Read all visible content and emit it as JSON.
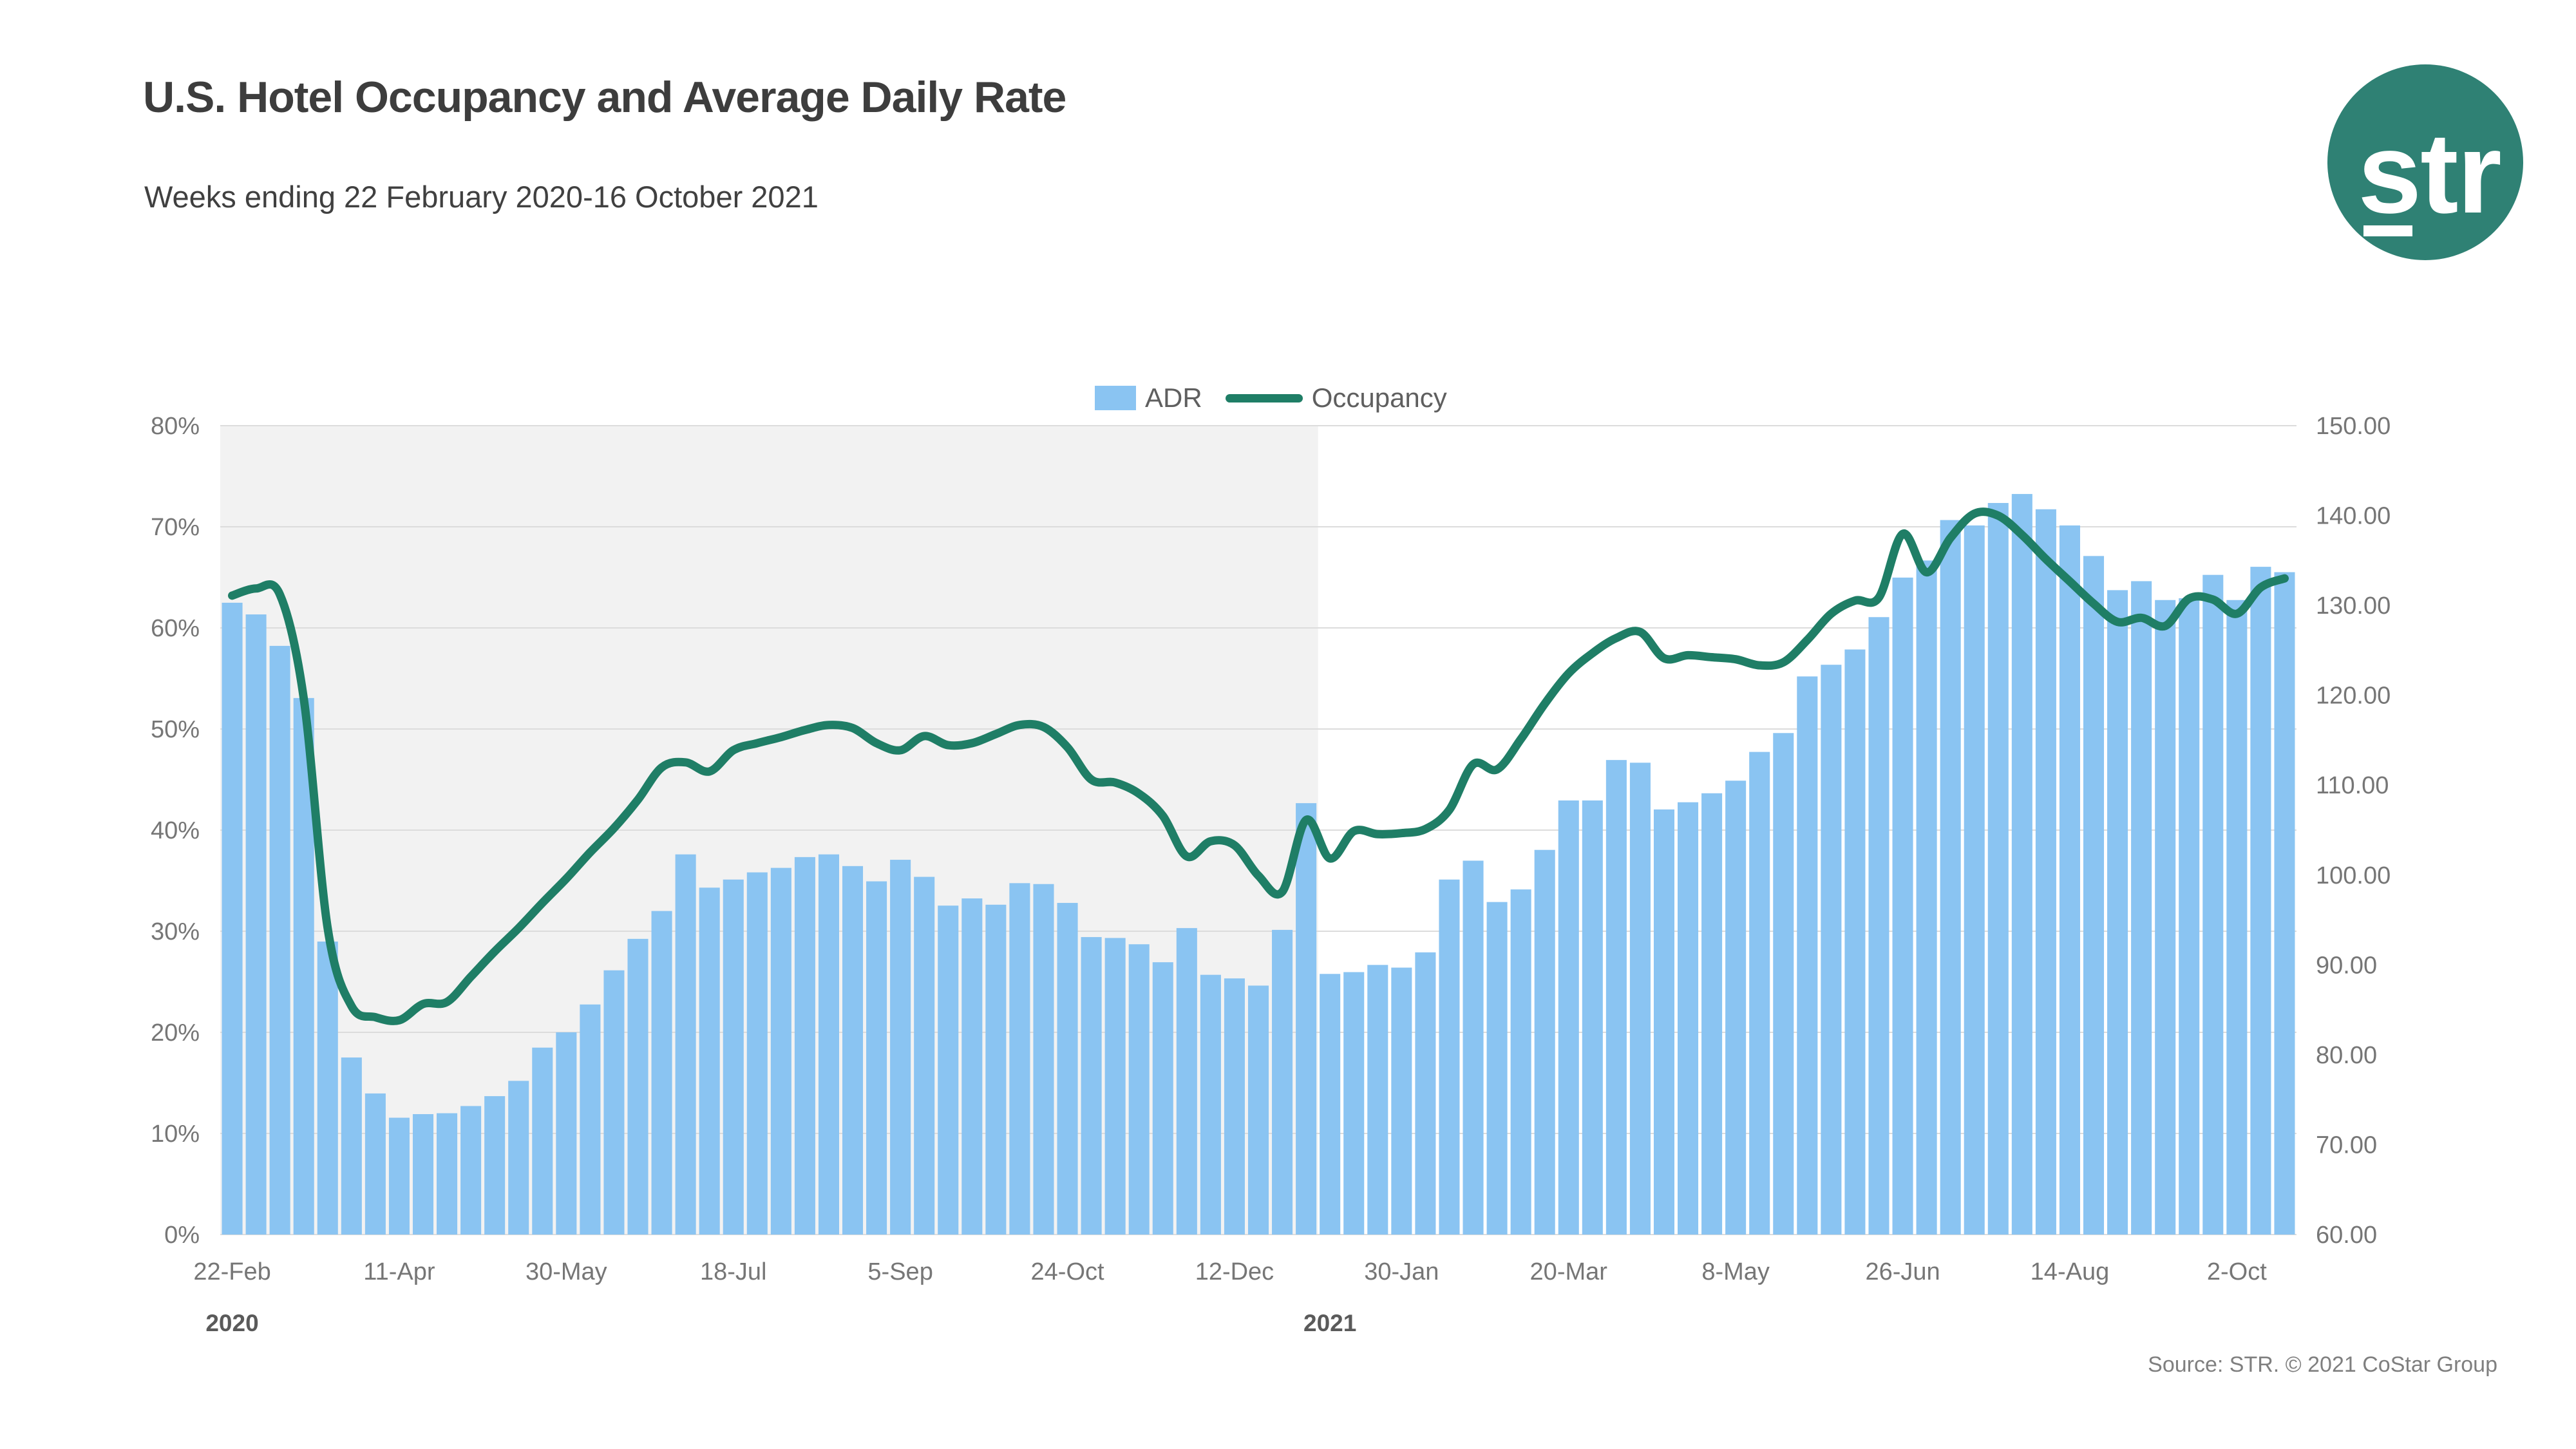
{
  "header": {
    "title": "U.S. Hotel Occupancy and Average Daily Rate",
    "subtitle": "Weeks ending 22 February 2020-16 October 2021"
  },
  "logo": {
    "text": "str",
    "circle_color": "#2F8174",
    "text_color": "#ffffff"
  },
  "legend": {
    "adr_label": "ADR",
    "occupancy_label": "Occupancy"
  },
  "source": "Source: STR. © 2021 CoStar Group",
  "colors": {
    "bar": "#8AC4F2",
    "line": "#1F7E66",
    "gridline": "#dcdcdc",
    "shaded_region": "#f2f2f2",
    "axis_text": "#767676",
    "year_text": "#5a5a5a"
  },
  "chart_data": {
    "type": "combo",
    "title": "U.S. Hotel Occupancy and Average Daily Rate",
    "subtitle": "Weeks ending 22 February 2020-16 October 2021",
    "legend_position": "top-center",
    "grid": true,
    "weeks": [
      "2020-02-22",
      "2020-02-29",
      "2020-03-07",
      "2020-03-14",
      "2020-03-21",
      "2020-03-28",
      "2020-04-04",
      "2020-04-11",
      "2020-04-18",
      "2020-04-25",
      "2020-05-02",
      "2020-05-09",
      "2020-05-16",
      "2020-05-23",
      "2020-05-30",
      "2020-06-06",
      "2020-06-13",
      "2020-06-20",
      "2020-06-27",
      "2020-07-04",
      "2020-07-11",
      "2020-07-18",
      "2020-07-25",
      "2020-08-01",
      "2020-08-08",
      "2020-08-15",
      "2020-08-22",
      "2020-08-29",
      "2020-09-05",
      "2020-09-12",
      "2020-09-19",
      "2020-09-26",
      "2020-10-03",
      "2020-10-10",
      "2020-10-17",
      "2020-10-24",
      "2020-10-31",
      "2020-11-07",
      "2020-11-14",
      "2020-11-21",
      "2020-11-28",
      "2020-12-05",
      "2020-12-12",
      "2020-12-19",
      "2020-12-26",
      "2021-01-02",
      "2021-01-09",
      "2021-01-16",
      "2021-01-23",
      "2021-01-30",
      "2021-02-06",
      "2021-02-13",
      "2021-02-20",
      "2021-02-27",
      "2021-03-06",
      "2021-03-13",
      "2021-03-20",
      "2021-03-27",
      "2021-04-03",
      "2021-04-10",
      "2021-04-17",
      "2021-04-24",
      "2021-05-01",
      "2021-05-08",
      "2021-05-15",
      "2021-05-22",
      "2021-05-29",
      "2021-06-05",
      "2021-06-12",
      "2021-06-19",
      "2021-06-26",
      "2021-07-03",
      "2021-07-10",
      "2021-07-17",
      "2021-07-24",
      "2021-07-31",
      "2021-08-07",
      "2021-08-14",
      "2021-08-21",
      "2021-08-28",
      "2021-09-04",
      "2021-09-11",
      "2021-09-18",
      "2021-09-25",
      "2021-10-02",
      "2021-10-09",
      "2021-10-16"
    ],
    "series": [
      {
        "name": "ADR",
        "type": "bar",
        "axis": "right",
        "color": "#8AC4F2",
        "values": [
          130.3,
          129.0,
          125.5,
          119.7,
          92.6,
          79.7,
          75.7,
          73.0,
          73.4,
          73.5,
          74.3,
          75.4,
          77.1,
          80.8,
          82.5,
          85.6,
          89.4,
          92.9,
          96.0,
          102.3,
          98.6,
          99.5,
          100.3,
          100.8,
          102.0,
          102.3,
          101.0,
          99.3,
          101.7,
          99.8,
          96.6,
          97.4,
          96.7,
          99.1,
          99.0,
          96.9,
          93.1,
          93.0,
          92.3,
          90.3,
          94.1,
          88.9,
          88.5,
          87.7,
          93.9,
          108.0,
          89.0,
          89.2,
          90.0,
          89.7,
          91.4,
          99.5,
          101.6,
          97.0,
          98.4,
          102.8,
          108.3,
          108.3,
          112.8,
          112.5,
          107.3,
          108.1,
          109.1,
          110.5,
          113.7,
          115.8,
          122.1,
          123.4,
          125.1,
          128.7,
          133.1,
          135.0,
          139.5,
          138.9,
          141.4,
          142.4,
          140.7,
          138.9,
          135.5,
          131.7,
          132.7,
          130.6,
          130.8,
          133.4,
          130.6,
          134.3,
          133.7
        ]
      },
      {
        "name": "Occupancy",
        "type": "line",
        "axis": "left",
        "color": "#1F7E66",
        "values": [
          63.2,
          63.9,
          63.3,
          53.0,
          30.3,
          22.6,
          21.5,
          21.2,
          22.8,
          23.0,
          25.5,
          28.0,
          30.3,
          32.8,
          35.2,
          37.8,
          40.2,
          43.0,
          46.2,
          46.7,
          45.8,
          47.9,
          48.6,
          49.2,
          49.9,
          50.4,
          50.1,
          48.6,
          47.9,
          49.3,
          48.4,
          48.6,
          49.5,
          50.4,
          50.2,
          48.2,
          45.0,
          44.7,
          43.6,
          41.4,
          37.4,
          38.9,
          38.5,
          35.5,
          33.9,
          41.0,
          37.2,
          39.9,
          39.6,
          39.7,
          40.1,
          42.0,
          46.5,
          46.0,
          49.0,
          52.5,
          55.5,
          57.5,
          59.0,
          59.6,
          57.0,
          57.3,
          57.1,
          56.9,
          56.3,
          56.6,
          58.8,
          61.4,
          62.7,
          63.0,
          69.3,
          65.5,
          68.9,
          71.3,
          71.1,
          69.2,
          66.8,
          64.6,
          62.4,
          60.6,
          61.0,
          60.2,
          62.9,
          62.8,
          61.4,
          64.0,
          64.9
        ]
      }
    ],
    "left_axis": {
      "min": 0,
      "max": 80,
      "step": 10,
      "format": "percent",
      "ticks": [
        "0%",
        "10%",
        "20%",
        "30%",
        "40%",
        "50%",
        "60%",
        "70%",
        "80%"
      ]
    },
    "right_axis": {
      "min": 60,
      "max": 150,
      "step": 10,
      "decimals": 2,
      "ticks": [
        "60.00",
        "70.00",
        "80.00",
        "90.00",
        "100.00",
        "110.00",
        "120.00",
        "130.00",
        "140.00",
        "150.00"
      ]
    },
    "x_ticks": [
      {
        "week": 1,
        "label": "22-Feb"
      },
      {
        "week": 8,
        "label": "11-Apr"
      },
      {
        "week": 15,
        "label": "30-May"
      },
      {
        "week": 22,
        "label": "18-Jul"
      },
      {
        "week": 29,
        "label": "5-Sep"
      },
      {
        "week": 36,
        "label": "24-Oct"
      },
      {
        "week": 43,
        "label": "12-Dec"
      },
      {
        "week": 50,
        "label": "30-Jan"
      },
      {
        "week": 57,
        "label": "20-Mar"
      },
      {
        "week": 64,
        "label": "8-May"
      },
      {
        "week": 71,
        "label": "26-Jun"
      },
      {
        "week": 78,
        "label": "14-Aug"
      },
      {
        "week": 85,
        "label": "2-Oct"
      }
    ],
    "year_labels": [
      {
        "label": "2020",
        "week": 1
      },
      {
        "label": "2021",
        "week": 47
      }
    ],
    "shaded_region": {
      "start_week": 1,
      "end_week": 46,
      "color": "#f2f2f2"
    }
  }
}
